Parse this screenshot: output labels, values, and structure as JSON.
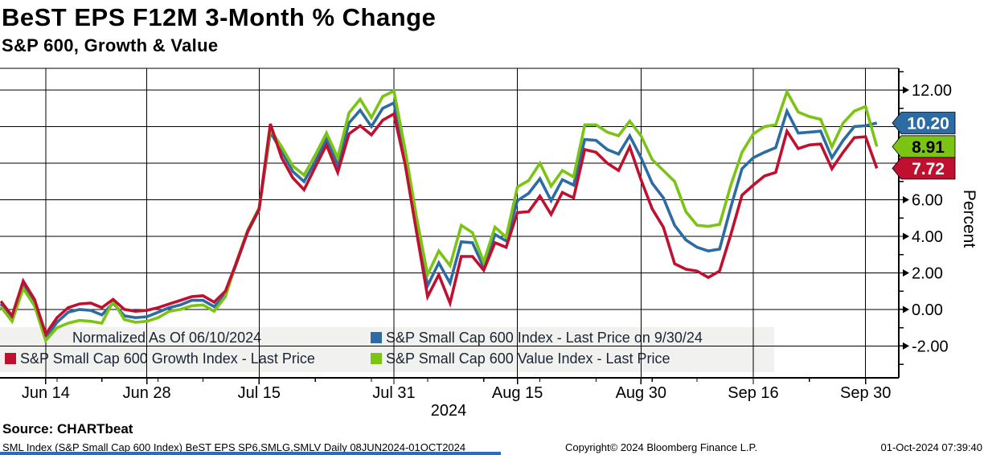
{
  "page": {
    "title": "BeST EPS F12M 3-Month % Change",
    "subtitle": "S&P 600, Growth & Value"
  },
  "legend": {
    "note": "Normalized As Of 06/10/2024",
    "items": [
      {
        "key": "sp600-index",
        "label": "S&P Small Cap 600 Index - Last Price on 9/30/24",
        "color": "#2d6ca3"
      },
      {
        "key": "sp600-growth",
        "label": "S&P Small Cap 600 Growth Index - Last Price",
        "color": "#c01030"
      },
      {
        "key": "sp600-value",
        "label": "S&P Small Cap 600 Value Index - Last Price",
        "color": "#7cc413"
      }
    ]
  },
  "footer": {
    "source": "Source: CHARTbeat",
    "meta_left": "SML Index (S&P Small Cap 600 Index) BeST EPS SP6,SMLG,SMLV  Daily 08JUN2024-01OCT2024",
    "meta_center": "Copyright© 2024 Bloomberg Finance L.P.",
    "meta_right": "01-Oct-2024 07:39:40"
  },
  "chart_data": {
    "type": "line",
    "title": "BeST EPS F12M 3-Month % Change",
    "subtitle": "S&P 600, Growth & Value",
    "ylabel": "Percent",
    "year_label": "2024",
    "grid": true,
    "legend_position": "bottom-left",
    "ylim": [
      -3.74,
      13.19
    ],
    "x_dates": [
      "Jun 10",
      "Jun 11",
      "Jun 12",
      "Jun 13",
      "Jun 14",
      "Jun 17",
      "Jun 18",
      "Jun 20",
      "Jun 21",
      "Jun 24",
      "Jun 25",
      "Jun 26",
      "Jun 27",
      "Jun 28",
      "Jul 1",
      "Jul 2",
      "Jul 3",
      "Jul 5",
      "Jul 8",
      "Jul 9",
      "Jul 10",
      "Jul 11",
      "Jul 12",
      "Jul 15",
      "Jul 16",
      "Jul 17",
      "Jul 18",
      "Jul 19",
      "Jul 22",
      "Jul 23",
      "Jul 24",
      "Jul 25",
      "Jul 26",
      "Jul 29",
      "Jul 30",
      "Jul 31",
      "Aug 1",
      "Aug 2",
      "Aug 5",
      "Aug 6",
      "Aug 7",
      "Aug 8",
      "Aug 9",
      "Aug 12",
      "Aug 13",
      "Aug 14",
      "Aug 15",
      "Aug 16",
      "Aug 19",
      "Aug 20",
      "Aug 21",
      "Aug 22",
      "Aug 23",
      "Aug 26",
      "Aug 27",
      "Aug 28",
      "Aug 29",
      "Aug 30",
      "Sep 3",
      "Sep 4",
      "Sep 5",
      "Sep 6",
      "Sep 9",
      "Sep 10",
      "Sep 11",
      "Sep 12",
      "Sep 13",
      "Sep 16",
      "Sep 17",
      "Sep 18",
      "Sep 19",
      "Sep 20",
      "Sep 23",
      "Sep 24",
      "Sep 25",
      "Sep 26",
      "Sep 27",
      "Sep 30",
      "Oct 1"
    ],
    "xticks": [
      {
        "i": 4,
        "label": "Jun 14"
      },
      {
        "i": 13,
        "label": "Jun 28"
      },
      {
        "i": 23,
        "label": "Jul 15"
      },
      {
        "i": 35,
        "label": "Jul 31"
      },
      {
        "i": 46,
        "label": "Aug 15"
      },
      {
        "i": 57,
        "label": "Aug 30"
      },
      {
        "i": 67,
        "label": "Sep 16"
      },
      {
        "i": 77,
        "label": "Sep 30"
      }
    ],
    "x_minor_days": [
      5,
      9,
      14,
      18,
      28,
      33,
      38,
      43,
      48,
      53,
      58,
      62,
      72
    ],
    "yticks": [
      {
        "value": 12,
        "label": "12.00"
      },
      {
        "value": 10,
        "label": "10.00"
      },
      {
        "value": 8,
        "label": "8.00"
      },
      {
        "value": 6,
        "label": "6.00"
      },
      {
        "value": 4,
        "label": "4.00"
      },
      {
        "value": 2,
        "label": "2.00"
      },
      {
        "value": 0,
        "label": "0.00"
      },
      {
        "value": -2,
        "label": "-2.00"
      }
    ],
    "y_minor": [
      13,
      11,
      9,
      7,
      5,
      3,
      1,
      -1,
      -3
    ],
    "series": [
      {
        "key": "sp600-index",
        "name": "S&P Small Cap 600 Index - Last Price on 9/30/24",
        "color": "#2d6ca3",
        "last_label": "10.20",
        "label_text_color": "#ffffff",
        "values": [
          0.3,
          -0.5,
          1.35,
          0.35,
          -1.55,
          -0.7,
          -0.15,
          0,
          -0.05,
          -0.3,
          0.35,
          -0.35,
          -0.45,
          -0.4,
          -0.15,
          0.1,
          0.25,
          0.5,
          0.5,
          0.15,
          0.8,
          2.55,
          4.25,
          5.45,
          9.7,
          8.65,
          7.55,
          7,
          8.1,
          9.3,
          7.9,
          10.2,
          10.9,
          10,
          11,
          11.3,
          8.3,
          4.85,
          1.3,
          2.55,
          1.45,
          3.7,
          3.65,
          2.3,
          4.1,
          3.75,
          5.95,
          6.35,
          7.15,
          5.95,
          7.1,
          6.8,
          9.3,
          9.25,
          8.75,
          8.5,
          9.5,
          8.3,
          6.9,
          6.1,
          4.6,
          3.8,
          3.4,
          3.2,
          3.3,
          5.6,
          7.7,
          8.3,
          8.6,
          8.85,
          10.85,
          9.65,
          9.7,
          9.75,
          8.3,
          9.25,
          10,
          10.05,
          10.2
        ]
      },
      {
        "key": "sp600-value",
        "name": "S&P Small Cap 600 Value Index - Last Price",
        "color": "#7cc413",
        "last_label": "8.91",
        "label_text_color": "#000000",
        "values": [
          0.15,
          -0.65,
          1.15,
          0.2,
          -1.7,
          -1,
          -0.75,
          -0.6,
          -0.65,
          -0.75,
          0.45,
          -0.55,
          -0.7,
          -0.65,
          -0.45,
          -0.1,
          0,
          0.2,
          0.25,
          -0.1,
          0.7,
          2.65,
          4.35,
          5.55,
          9.85,
          8.9,
          7.85,
          7.35,
          8.45,
          9.65,
          8.3,
          10.75,
          11.5,
          10.5,
          11.65,
          11.95,
          8.75,
          5.1,
          1.9,
          3.2,
          2.4,
          4.6,
          4.2,
          2.6,
          4.5,
          3.95,
          6.7,
          7.05,
          8,
          6.75,
          7.6,
          7.25,
          10.1,
          10.1,
          9.7,
          9.5,
          10.3,
          9.5,
          8.2,
          7.6,
          7,
          5.35,
          4.6,
          4.55,
          4.65,
          6.8,
          8.6,
          9.6,
          10,
          10.1,
          11.9,
          10.8,
          10.55,
          10.4,
          8.9,
          10.2,
          10.85,
          11.1,
          8.91
        ]
      },
      {
        "key": "sp600-growth",
        "name": "S&P Small Cap 600 Growth Index - Last Price",
        "color": "#c01030",
        "last_label": "7.72",
        "label_text_color": "#ffffff",
        "values": [
          0.45,
          -0.35,
          1.55,
          0.55,
          -1.35,
          -0.45,
          0.1,
          0.3,
          0.35,
          0.1,
          0.55,
          0,
          -0.1,
          -0.05,
          0.1,
          0.3,
          0.5,
          0.7,
          0.75,
          0.4,
          1,
          2.6,
          4.3,
          5.5,
          10.15,
          8.3,
          7.2,
          6.55,
          7.8,
          9,
          7.5,
          9.6,
          10.05,
          9.55,
          10.35,
          10.7,
          7.95,
          4.3,
          0.7,
          1.9,
          0.35,
          2.9,
          2.9,
          2.15,
          3.65,
          3.4,
          5.3,
          5.35,
          6.2,
          5.2,
          6.4,
          6.1,
          8.75,
          8.6,
          8,
          7.6,
          8.9,
          7.1,
          5.5,
          4.5,
          2.5,
          2.2,
          2.1,
          1.75,
          2.1,
          4.1,
          6.25,
          6.8,
          7.3,
          7.5,
          9.75,
          8.8,
          9,
          9.05,
          7.7,
          8.6,
          9.4,
          9.45,
          7.72
        ]
      }
    ]
  }
}
